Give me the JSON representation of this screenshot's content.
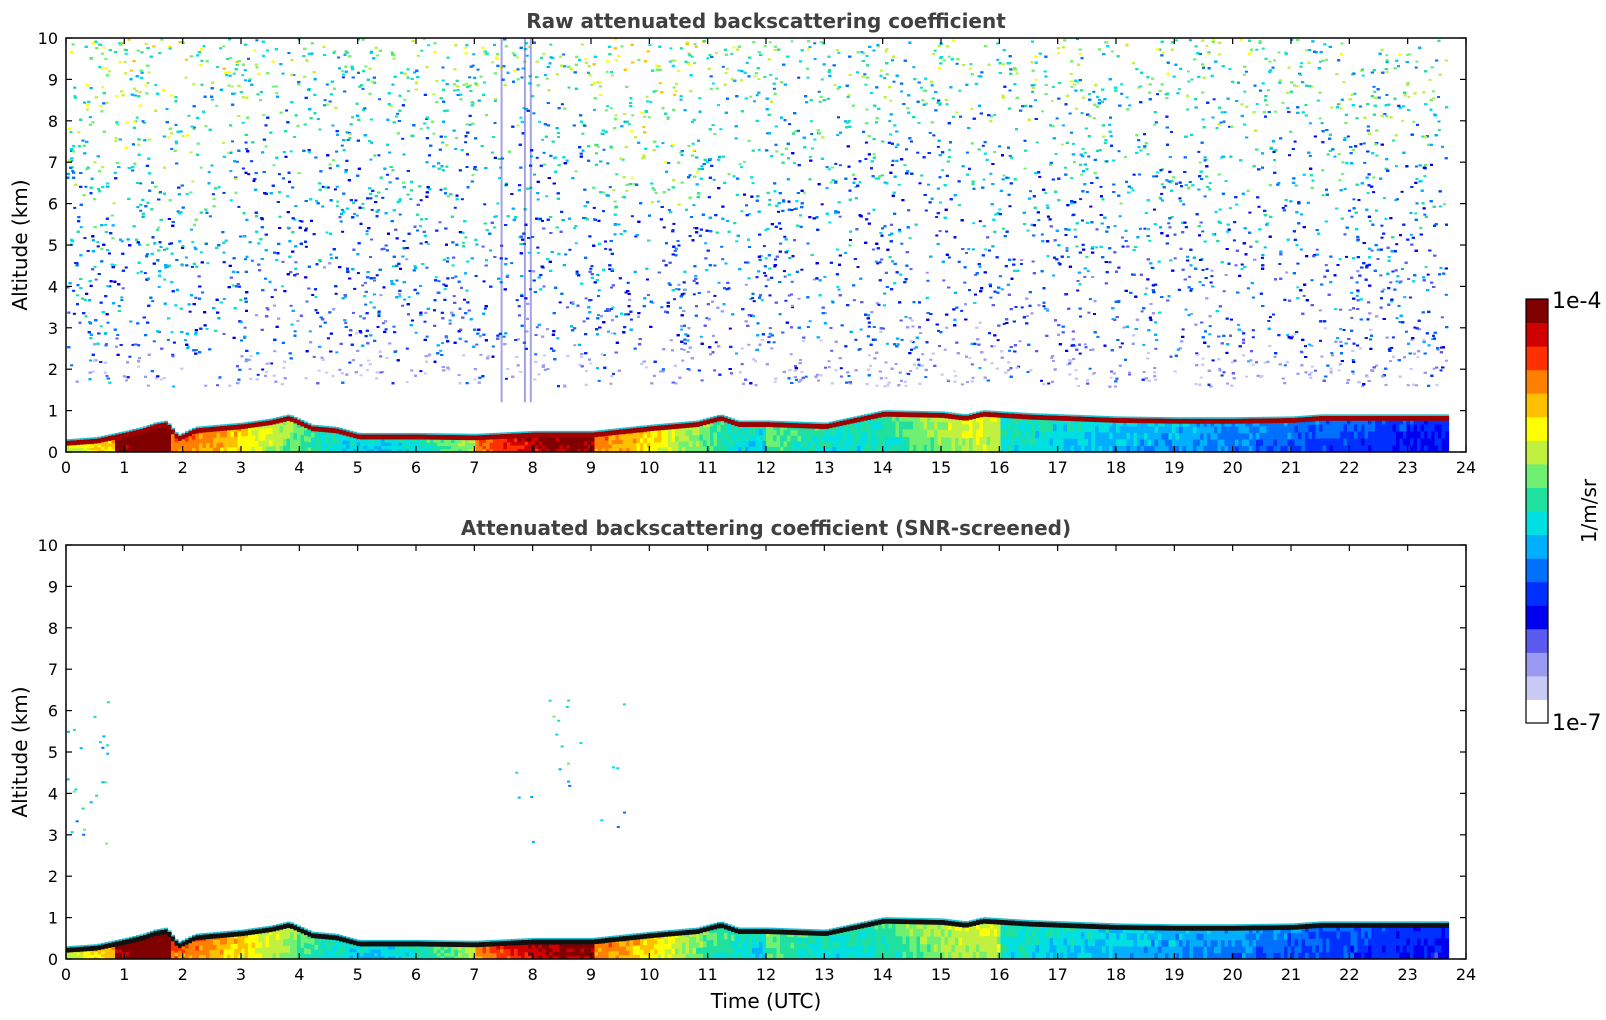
{
  "colorbar": {
    "max_label": "1e-4",
    "min_label": "1e-7",
    "unit_label": "1/m/sr",
    "colors": [
      "#ffffff",
      "#c9c9f5",
      "#9a9af0",
      "#5b5bf0",
      "#0000f0",
      "#0030ff",
      "#0070ff",
      "#00b0ff",
      "#00e0e0",
      "#20e0a0",
      "#70f070",
      "#c0f040",
      "#ffff00",
      "#ffc000",
      "#ff8000",
      "#ff3000",
      "#d00000",
      "#800000"
    ]
  },
  "chart_data": [
    {
      "type": "heatmap",
      "title": "Raw attenuated backscattering coefficient",
      "xlabel": "",
      "ylabel": "Altitude (km)",
      "xlim": [
        0,
        24
      ],
      "ylim": [
        0,
        10
      ],
      "xticks": [
        "0",
        "1",
        "2",
        "3",
        "4",
        "5",
        "6",
        "7",
        "8",
        "9",
        "10",
        "11",
        "12",
        "13",
        "14",
        "15",
        "16",
        "17",
        "18",
        "19",
        "20",
        "21",
        "22",
        "23",
        "24"
      ],
      "yticks": [
        "0",
        "1",
        "2",
        "3",
        "4",
        "5",
        "6",
        "7",
        "8",
        "9",
        "10"
      ],
      "data_end_time": 23.65,
      "boundary_layer_top_km": {
        "time": [
          0,
          0.5,
          1.0,
          1.3,
          1.5,
          1.7,
          1.9,
          2.2,
          2.6,
          3.0,
          3.5,
          3.8,
          4.2,
          4.6,
          5.0,
          6.0,
          7.0,
          8.0,
          9.0,
          10.0,
          10.8,
          11.2,
          11.5,
          12.0,
          13.0,
          13.5,
          14.0,
          15.0,
          15.4,
          15.7,
          16.5,
          18.0,
          19.0,
          20.0,
          21.0,
          21.5,
          22.0,
          23.0,
          23.65
        ],
        "altitude": [
          0.25,
          0.3,
          0.45,
          0.55,
          0.65,
          0.7,
          0.35,
          0.55,
          0.6,
          0.65,
          0.75,
          0.85,
          0.6,
          0.55,
          0.4,
          0.4,
          0.38,
          0.45,
          0.45,
          0.6,
          0.7,
          0.85,
          0.7,
          0.7,
          0.65,
          0.8,
          0.95,
          0.92,
          0.85,
          0.95,
          0.88,
          0.8,
          0.78,
          0.78,
          0.8,
          0.85,
          0.85,
          0.85,
          0.85
        ]
      },
      "noise": "dense speckle from ~1.8 km to 10 km, blue at low levels grading to green/yellow aloft"
    },
    {
      "type": "heatmap",
      "title": "Attenuated backscattering coefficient (SNR-screened)",
      "xlabel": "Time (UTC)",
      "ylabel": "Altitude (km)",
      "xlim": [
        0,
        24
      ],
      "ylim": [
        0,
        10
      ],
      "xticks": [
        "0",
        "1",
        "2",
        "3",
        "4",
        "5",
        "6",
        "7",
        "8",
        "9",
        "10",
        "11",
        "12",
        "13",
        "14",
        "15",
        "16",
        "17",
        "18",
        "19",
        "20",
        "21",
        "22",
        "23",
        "24"
      ],
      "yticks": [
        "0",
        "1",
        "2",
        "3",
        "4",
        "5",
        "6",
        "7",
        "8",
        "9",
        "10"
      ],
      "data_end_time": 23.65,
      "noise": "only a few isolated pixels above the boundary layer"
    }
  ]
}
